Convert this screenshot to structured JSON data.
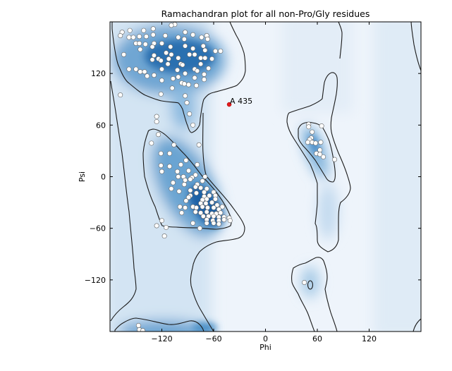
{
  "chart_data": {
    "type": "scatter",
    "title": "Ramachandran plot for all non-Pro/Gly residues",
    "xlabel": "Phi",
    "ylabel": "Psi",
    "xlim": [
      -180,
      180
    ],
    "ylim": [
      -180,
      180
    ],
    "xticks": [
      "-120",
      "-60",
      "0",
      "60",
      "120"
    ],
    "yticks": [
      "120",
      "60",
      "0",
      "-60",
      "-120"
    ],
    "grid": false,
    "background": "density heatmap (blues) with contour lines",
    "colors": {
      "point_fill": "#ffffff",
      "outlier": "#e41a1c",
      "density_dark": "#1f62a6",
      "density_light": "#eef4fb"
    },
    "points": [
      [
        -166,
        168
      ],
      [
        -157,
        170
      ],
      [
        -141,
        170
      ],
      [
        -130,
        172
      ],
      [
        -105,
        177
      ],
      [
        -109,
        176
      ],
      [
        -93,
        168
      ],
      [
        -84,
        165
      ],
      [
        -68,
        164
      ],
      [
        -168,
        164
      ],
      [
        -158,
        162
      ],
      [
        -153,
        162
      ],
      [
        -146,
        163
      ],
      [
        -138,
        163
      ],
      [
        -130,
        165
      ],
      [
        -116,
        164
      ],
      [
        -101,
        162
      ],
      [
        -94,
        160
      ],
      [
        -74,
        162
      ],
      [
        -67,
        160
      ],
      [
        -150,
        155
      ],
      [
        -146,
        155
      ],
      [
        -139,
        154
      ],
      [
        -129,
        155
      ],
      [
        -120,
        155
      ],
      [
        -131,
        151
      ],
      [
        -93,
        152
      ],
      [
        -72,
        152
      ],
      [
        -145,
        148
      ],
      [
        -110,
        151
      ],
      [
        -84,
        149
      ],
      [
        -70,
        147
      ],
      [
        -58,
        146
      ],
      [
        -52,
        146
      ],
      [
        -164,
        142
      ],
      [
        -129,
        141
      ],
      [
        -115,
        144
      ],
      [
        -109,
        142
      ],
      [
        -88,
        142
      ],
      [
        -82,
        142
      ],
      [
        -75,
        138
      ],
      [
        -70,
        138
      ],
      [
        -62,
        137
      ],
      [
        -124,
        137
      ],
      [
        -131,
        136
      ],
      [
        -101,
        138
      ],
      [
        -112,
        137
      ],
      [
        -121,
        135
      ],
      [
        -75,
        131
      ],
      [
        -113,
        131
      ],
      [
        -98,
        131
      ],
      [
        -96,
        130
      ],
      [
        -66,
        126
      ],
      [
        -158,
        125
      ],
      [
        -150,
        125
      ],
      [
        -145,
        122
      ],
      [
        -140,
        122
      ],
      [
        -137,
        117
      ],
      [
        -129,
        118
      ],
      [
        -120,
        125
      ],
      [
        -102,
        124
      ],
      [
        -93,
        120
      ],
      [
        -82,
        125
      ],
      [
        -79,
        123
      ],
      [
        -71,
        119
      ],
      [
        -71,
        113
      ],
      [
        -82,
        115
      ],
      [
        -101,
        116
      ],
      [
        -107,
        114
      ],
      [
        -120,
        112
      ],
      [
        -97,
        109
      ],
      [
        -94,
        108
      ],
      [
        -89,
        107
      ],
      [
        -80,
        106
      ],
      [
        -108,
        103
      ],
      [
        -168,
        95
      ],
      [
        -121,
        96
      ],
      [
        -93,
        94
      ],
      [
        -91,
        86
      ],
      [
        -88,
        73
      ],
      [
        -84,
        60
      ],
      [
        -126,
        70
      ],
      [
        -126,
        64
      ],
      [
        -124,
        49
      ],
      [
        -132,
        39
      ],
      [
        -106,
        37
      ],
      [
        -77,
        37
      ],
      [
        -121,
        27
      ],
      [
        -111,
        27
      ],
      [
        -121,
        13
      ],
      [
        -111,
        12
      ],
      [
        -120,
        6
      ],
      [
        -98,
        14
      ],
      [
        -92,
        19
      ],
      [
        -79,
        14
      ],
      [
        -102,
        6
      ],
      [
        -89,
        7
      ],
      [
        -81,
        2
      ],
      [
        -95,
        0
      ],
      [
        -85,
        -1
      ],
      [
        -101,
        0
      ],
      [
        -93,
        -4
      ],
      [
        -87,
        -3
      ],
      [
        -107,
        -7
      ],
      [
        -94,
        -9
      ],
      [
        -70,
        0
      ],
      [
        -73,
        -5
      ],
      [
        -79,
        -9
      ],
      [
        -109,
        -14
      ],
      [
        -100,
        -17
      ],
      [
        -87,
        -16
      ],
      [
        -81,
        -12
      ],
      [
        -75,
        -13
      ],
      [
        -68,
        -14
      ],
      [
        -71,
        -18
      ],
      [
        -60,
        -18
      ],
      [
        -87,
        -22
      ],
      [
        -80,
        -19
      ],
      [
        -65,
        -22
      ],
      [
        -58,
        -22
      ],
      [
        -71,
        -23
      ],
      [
        -89,
        -24
      ],
      [
        -58,
        -26
      ],
      [
        -92,
        -28
      ],
      [
        -73,
        -27
      ],
      [
        -68,
        -26
      ],
      [
        -62,
        -30
      ],
      [
        -69,
        -31
      ],
      [
        -75,
        -31
      ],
      [
        -56,
        -33
      ],
      [
        -50,
        -35
      ],
      [
        -99,
        -35
      ],
      [
        -93,
        -36
      ],
      [
        -84,
        -35
      ],
      [
        -80,
        -36
      ],
      [
        -73,
        -35
      ],
      [
        -67,
        -36
      ],
      [
        -60,
        -36
      ],
      [
        -54,
        -38
      ],
      [
        -97,
        -42
      ],
      [
        -81,
        -41
      ],
      [
        -75,
        -42
      ],
      [
        -68,
        -41
      ],
      [
        -62,
        -43
      ],
      [
        -57,
        -43
      ],
      [
        -52,
        -42
      ],
      [
        -72,
        -46
      ],
      [
        -66,
        -46
      ],
      [
        -60,
        -46
      ],
      [
        -54,
        -47
      ],
      [
        -48,
        -47
      ],
      [
        -42,
        -48
      ],
      [
        -68,
        -50
      ],
      [
        -61,
        -51
      ],
      [
        -54,
        -51
      ],
      [
        -48,
        -50
      ],
      [
        -41,
        -51
      ],
      [
        -84,
        -54
      ],
      [
        -76,
        -60
      ],
      [
        -68,
        -54
      ],
      [
        -60,
        -54
      ],
      [
        -54,
        -55
      ],
      [
        -120,
        -51
      ],
      [
        -126,
        -57
      ],
      [
        -115,
        -59
      ],
      [
        -117,
        -69
      ],
      [
        50,
        61
      ],
      [
        50,
        58
      ],
      [
        65,
        59
      ],
      [
        54,
        52
      ],
      [
        53,
        45
      ],
      [
        51,
        43
      ],
      [
        49,
        40
      ],
      [
        54,
        40
      ],
      [
        58,
        39
      ],
      [
        64,
        40
      ],
      [
        63,
        31
      ],
      [
        59,
        27
      ],
      [
        63,
        26
      ],
      [
        67,
        23
      ],
      [
        80,
        20
      ],
      [
        45,
        -123
      ],
      [
        -147,
        -173
      ],
      [
        -146,
        -178
      ],
      [
        -142,
        -179
      ]
    ],
    "outliers": [
      {
        "label": "A 435",
        "phi": -42,
        "psi": 84
      }
    ]
  }
}
